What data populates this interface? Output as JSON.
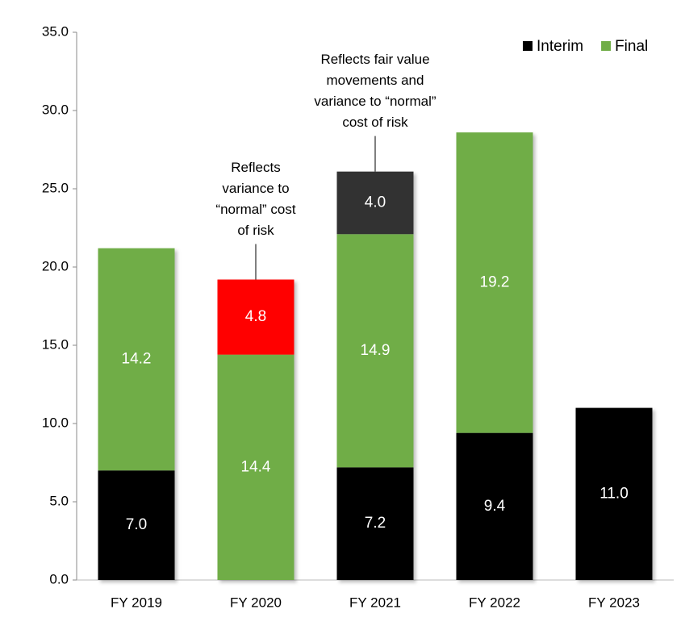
{
  "chart_data": {
    "type": "stacked_bar",
    "categories": [
      "FY 2019",
      "FY 2020",
      "FY 2021",
      "FY 2022",
      "FY 2023"
    ],
    "series": [
      {
        "name": "Interim",
        "color": "#000000",
        "values": [
          7.0,
          null,
          7.2,
          9.4,
          11.0
        ],
        "value_labels": [
          "7.0",
          null,
          "7.2",
          "9.4",
          "11.0"
        ]
      },
      {
        "name": "Final",
        "color": "#70ad47",
        "values": [
          14.2,
          14.4,
          14.9,
          19.2,
          null
        ],
        "value_labels": [
          "14.2",
          "14.4",
          "14.9",
          "19.2",
          null
        ]
      },
      {
        "colors": [
          null,
          "#ff0000",
          "#333333",
          null,
          null
        ],
        "values": [
          null,
          4.8,
          4.0,
          null,
          null
        ],
        "value_labels": [
          null,
          "4.8",
          "4.0",
          null,
          null
        ]
      }
    ],
    "annotations": [
      null,
      [
        "Reflects",
        "variance to",
        "“normal” cost",
        "of risk"
      ],
      [
        "Reflects fair value",
        "movements and",
        "variance to “normal”",
        "cost of risk"
      ],
      null,
      null
    ],
    "ylim": [
      0,
      35
    ],
    "yticks": [
      {
        "value": 0,
        "label": "0.0"
      },
      {
        "value": 5,
        "label": "5.0"
      },
      {
        "value": 10,
        "label": "10.0"
      },
      {
        "value": 15,
        "label": "15.0"
      },
      {
        "value": 20,
        "label": "20.0"
      },
      {
        "value": 25,
        "label": "25.0"
      },
      {
        "value": 30,
        "label": "30.0"
      },
      {
        "value": 35,
        "label": "35.0"
      }
    ],
    "legend": "top-right"
  }
}
